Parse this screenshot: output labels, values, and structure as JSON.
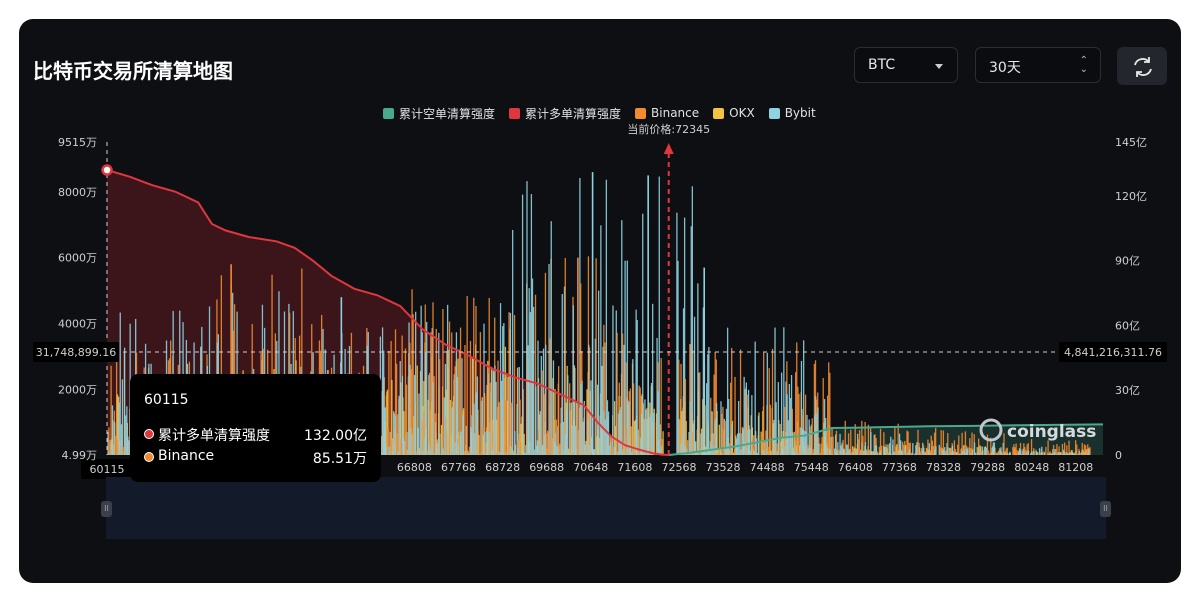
{
  "title": "比特币交易所清算地图",
  "controls": {
    "coin": "BTC",
    "period": "30天"
  },
  "legend": [
    {
      "name": "累计空单清算强度",
      "color": "#4aa88e"
    },
    {
      "name": "累计多单清算强度",
      "color": "#e0373f"
    },
    {
      "name": "Binance",
      "color": "#f28b30"
    },
    {
      "name": "OKX",
      "color": "#f5c242"
    },
    {
      "name": "Bybit",
      "color": "#8fd2e0"
    }
  ],
  "current_price_label": "当前价格:72345",
  "crosshair": {
    "left_value": "31,748,899.16",
    "right_value": "4,841,216,311.76",
    "x_value": "60115"
  },
  "watermark": "coinglass",
  "tooltip": {
    "header": "60115",
    "rows": [
      {
        "name": "累计多单清算强度",
        "value": "132.00亿",
        "color": "#e0373f"
      },
      {
        "name": "Binance",
        "value": "85.51万",
        "color": "#f28b30"
      }
    ]
  },
  "chart_data": {
    "type": "bar",
    "x_ticks": [
      "60115",
      "66808",
      "67768",
      "68728",
      "69688",
      "70648",
      "71608",
      "72568",
      "73528",
      "74488",
      "75448",
      "76408",
      "77368",
      "78328",
      "79288",
      "80248",
      "81208"
    ],
    "y_left_ticks": [
      "4.99万",
      "2000万",
      "4000万",
      "6000万",
      "8000万",
      "9515万"
    ],
    "y_right_ticks": [
      "0",
      "30亿",
      "60亿",
      "90亿",
      "120亿",
      "145亿"
    ],
    "xlim": [
      60115,
      81800
    ],
    "ylim_left": [
      49900,
      95150000
    ],
    "ylim_right": [
      0,
      14500000000
    ],
    "current_price": 72345,
    "long_cumulative": {
      "name": "累计多单清算强度",
      "x": [
        60115,
        60600,
        61100,
        61600,
        62100,
        62400,
        62700,
        63200,
        63800,
        64200,
        64600,
        65000,
        65500,
        66000,
        66500,
        67000,
        67500,
        68000,
        68500,
        69000,
        69500,
        70000,
        70500,
        70800,
        71100,
        71400,
        71700,
        72000,
        72200,
        72345
      ],
      "y": [
        13200000000,
        12900000000,
        12500000000,
        12200000000,
        11700000000,
        10700000000,
        10400000000,
        10100000000,
        9900000000,
        9600000000,
        9000000000,
        8300000000,
        7700000000,
        7400000000,
        6900000000,
        5800000000,
        5100000000,
        4600000000,
        4000000000,
        3600000000,
        3300000000,
        2800000000,
        2300000000,
        1500000000,
        850000000,
        450000000,
        250000000,
        80000000,
        20000000,
        0
      ]
    },
    "short_cumulative": {
      "name": "累计空单清算强度",
      "x": [
        72345,
        72800,
        73300,
        73800,
        74300,
        74800,
        75300,
        75900,
        76500,
        77000,
        77500,
        78000,
        79000,
        80000,
        81000,
        81800
      ],
      "y": [
        0,
        100000000,
        250000000,
        400000000,
        600000000,
        800000000,
        900000000,
        1250000000,
        1270000000,
        1290000000,
        1310000000,
        1330000000,
        1350000000,
        1380000000,
        1400000000,
        1420000000
      ]
    },
    "exchange_bars": {
      "note": "per-price liquidation bars, left axis",
      "series": [
        {
          "name": "Binance",
          "peak_values": [
            38000000,
            58000000,
            45000000,
            52000000,
            62000000,
            40000000,
            36000000,
            30000000,
            25000000,
            14000000
          ]
        },
        {
          "name": "OKX",
          "peak_values": [
            20000000,
            30000000,
            25000000,
            35000000,
            28000000,
            20000000,
            15000000,
            10000000,
            8000000,
            6000000
          ]
        },
        {
          "name": "Bybit",
          "peak_values": [
            45000000,
            50000000,
            40000000,
            48000000,
            86000000,
            85000000,
            40000000,
            20000000,
            12000000,
            8000000
          ]
        }
      ]
    }
  }
}
